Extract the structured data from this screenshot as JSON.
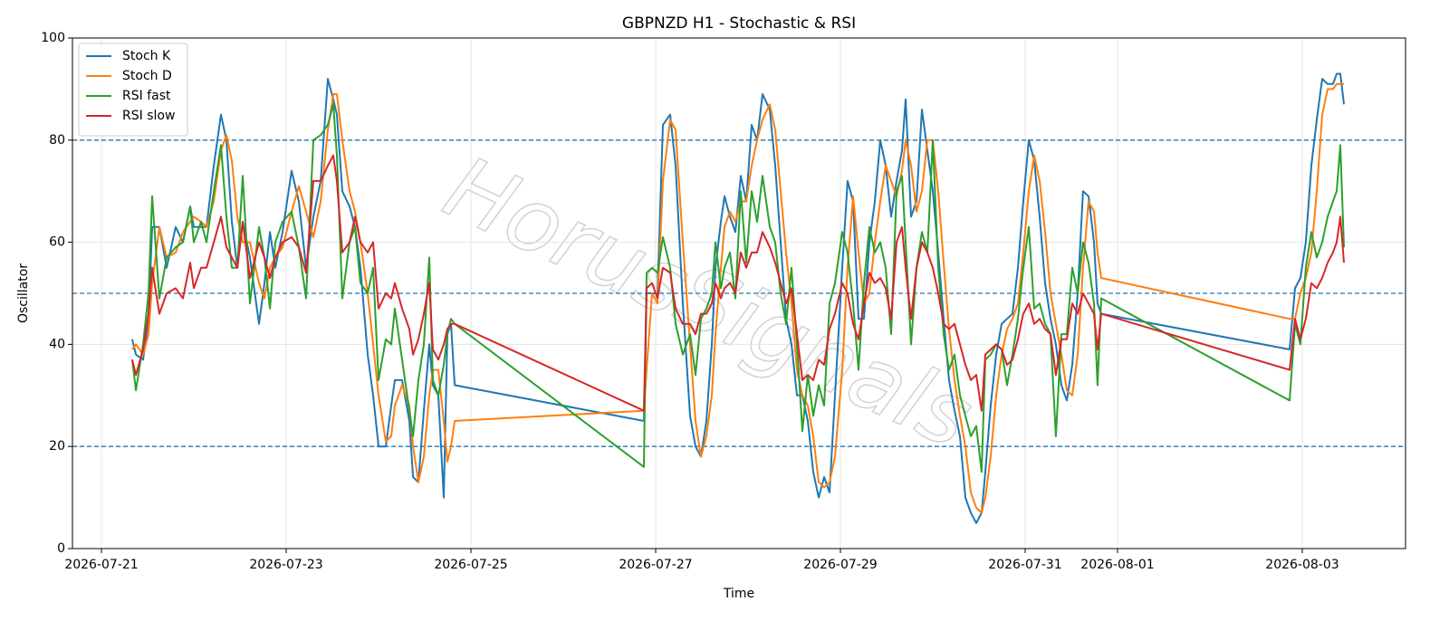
{
  "chart_data": {
    "type": "line",
    "title": "GBPNZD H1 - Stochastic & RSI",
    "x_label": "Time",
    "y_label": "Oscillator",
    "watermark": "HorusSignals",
    "xlim": [
      20654.686,
      20669.118
    ],
    "ylim": [
      0,
      100
    ],
    "xticks": [
      {
        "value": 20655,
        "label": "2026-07-21"
      },
      {
        "value": 20657,
        "label": "2026-07-23"
      },
      {
        "value": 20659,
        "label": "2026-07-25"
      },
      {
        "value": 20661,
        "label": "2026-07-27"
      },
      {
        "value": 20663,
        "label": "2026-07-29"
      },
      {
        "value": 20665,
        "label": "2026-07-31"
      },
      {
        "value": 20666,
        "label": "2026-08-01"
      },
      {
        "value": 20668,
        "label": "2026-08-03"
      }
    ],
    "yticks": [
      0,
      20,
      40,
      60,
      80,
      100
    ],
    "grid": true,
    "legend": "upper-left",
    "hlines": [
      20,
      50,
      80
    ],
    "hline_color": "#1f77b4",
    "x": [
      20655.333,
      20655.373,
      20655.451,
      20655.51,
      20655.549,
      20655.627,
      20655.706,
      20655.804,
      20655.882,
      20655.961,
      20656.0,
      20656.078,
      20656.137,
      20656.216,
      20656.294,
      20656.353,
      20656.412,
      20656.471,
      20656.529,
      20656.608,
      20656.706,
      20656.765,
      20656.824,
      20656.882,
      20656.961,
      20657.059,
      20657.137,
      20657.216,
      20657.294,
      20657.373,
      20657.451,
      20657.51,
      20657.549,
      20657.608,
      20657.686,
      20657.745,
      20657.804,
      20657.882,
      20657.941,
      20658.0,
      20658.078,
      20658.137,
      20658.176,
      20658.255,
      20658.333,
      20658.373,
      20658.431,
      20658.49,
      20658.549,
      20658.588,
      20658.647,
      20658.706,
      20658.745,
      20658.784,
      20658.824,
      20660.873,
      20660.902,
      20660.961,
      20661.02,
      20661.078,
      20661.157,
      20661.216,
      20661.294,
      20661.373,
      20661.431,
      20661.49,
      20661.549,
      20661.608,
      20661.647,
      20661.706,
      20661.745,
      20661.804,
      20661.863,
      20661.922,
      20661.98,
      20662.039,
      20662.098,
      20662.157,
      20662.235,
      20662.294,
      20662.353,
      20662.412,
      20662.471,
      20662.529,
      20662.588,
      20662.647,
      20662.706,
      20662.765,
      20662.824,
      20662.882,
      20662.941,
      20663.02,
      20663.078,
      20663.137,
      20663.196,
      20663.255,
      20663.314,
      20663.373,
      20663.431,
      20663.49,
      20663.549,
      20663.608,
      20663.667,
      20663.706,
      20663.765,
      20663.824,
      20663.882,
      20663.941,
      20664.0,
      20664.059,
      20664.118,
      20664.176,
      20664.235,
      20664.294,
      20664.353,
      20664.412,
      20664.471,
      20664.529,
      20664.569,
      20664.627,
      20664.686,
      20664.745,
      20664.804,
      20664.863,
      20664.922,
      20664.98,
      20665.039,
      20665.098,
      20665.157,
      20665.216,
      20665.275,
      20665.333,
      20665.392,
      20665.451,
      20665.51,
      20665.569,
      20665.627,
      20665.686,
      20665.745,
      20665.784,
      20665.824,
      20667.863,
      20667.922,
      20667.98,
      20668.039,
      20668.098,
      20668.157,
      20668.216,
      20668.275,
      20668.333,
      20668.373,
      20668.412,
      20668.451
    ],
    "series": [
      {
        "name": "Stoch K",
        "color": "#1f77b4",
        "values": [
          41,
          38,
          37,
          45,
          63,
          63,
          55,
          63,
          60,
          67,
          63,
          63,
          63,
          75,
          85,
          80,
          64,
          55,
          64,
          57,
          44,
          52,
          62,
          55,
          62,
          74,
          68,
          55,
          65,
          72,
          92,
          88,
          85,
          70,
          67,
          63,
          55,
          38,
          30,
          20,
          20,
          28,
          33,
          33,
          25,
          14,
          13,
          27,
          40,
          32,
          30,
          10,
          42,
          44,
          32,
          25,
          50,
          50,
          50,
          83,
          85,
          75,
          48,
          26,
          20,
          18,
          25,
          40,
          55,
          64,
          69,
          65,
          62,
          73,
          68,
          83,
          80,
          89,
          86,
          75,
          60,
          45,
          40,
          30,
          30,
          25,
          15,
          10,
          14,
          11,
          30,
          55,
          72,
          68,
          45,
          45,
          60,
          68,
          80,
          75,
          65,
          72,
          78,
          88,
          65,
          68,
          86,
          78,
          70,
          58,
          45,
          33,
          27,
          22,
          10,
          7,
          5,
          7,
          15,
          28,
          38,
          44,
          45,
          46,
          55,
          68,
          80,
          76,
          65,
          52,
          45,
          40,
          32,
          29,
          36,
          50,
          70,
          69,
          60,
          48,
          46,
          39,
          51,
          53,
          60,
          75,
          84,
          92,
          91,
          91,
          93,
          93,
          87
        ]
      },
      {
        "name": "Stoch D",
        "color": "#ff7f0e",
        "values": [
          39,
          40,
          38,
          42,
          52,
          63,
          57,
          58,
          62,
          64,
          65,
          64,
          63,
          68,
          78,
          81,
          76,
          65,
          60,
          60,
          52,
          49,
          55,
          57,
          59,
          66,
          71,
          66,
          61,
          68,
          82,
          89,
          89,
          80,
          70,
          66,
          60,
          50,
          40,
          30,
          21,
          22,
          28,
          32,
          28,
          20,
          13,
          18,
          30,
          35,
          35,
          25,
          17,
          20,
          25,
          27,
          35,
          50,
          48,
          72,
          84,
          82,
          60,
          40,
          25,
          18,
          22,
          30,
          42,
          55,
          63,
          66,
          64,
          68,
          68,
          75,
          80,
          84,
          87,
          82,
          70,
          58,
          48,
          35,
          30,
          28,
          22,
          13,
          12,
          13,
          18,
          35,
          55,
          69,
          58,
          48,
          50,
          60,
          68,
          75,
          72,
          69,
          74,
          80,
          75,
          66,
          70,
          80,
          80,
          70,
          56,
          43,
          33,
          26,
          20,
          11,
          8,
          7,
          10,
          18,
          30,
          38,
          43,
          45,
          48,
          58,
          70,
          77,
          72,
          62,
          50,
          44,
          38,
          31,
          30,
          38,
          55,
          68,
          66,
          58,
          53,
          45,
          45,
          50,
          53,
          58,
          70,
          85,
          90,
          90,
          91,
          91,
          91
        ]
      },
      {
        "name": "RSI fast",
        "color": "#2ca02c",
        "values": [
          37,
          31,
          40,
          50,
          69,
          49,
          57,
          59,
          60,
          67,
          60,
          64,
          60,
          70,
          79,
          65,
          55,
          55,
          73,
          48,
          63,
          57,
          47,
          60,
          64,
          66,
          59,
          49,
          80,
          81,
          83,
          87,
          77,
          49,
          60,
          63,
          52,
          50,
          55,
          33,
          41,
          40,
          47,
          37,
          27,
          22,
          33,
          40,
          57,
          33,
          30,
          36,
          42,
          45,
          44,
          16,
          54,
          55,
          54,
          61,
          55,
          44,
          38,
          42,
          34,
          45,
          47,
          50,
          60,
          51,
          55,
          58,
          49,
          70,
          56,
          70,
          64,
          73,
          63,
          60,
          50,
          44,
          55,
          40,
          23,
          34,
          26,
          32,
          28,
          48,
          52,
          62,
          58,
          48,
          35,
          52,
          63,
          58,
          60,
          55,
          42,
          70,
          73,
          60,
          40,
          55,
          62,
          58,
          80,
          55,
          42,
          35,
          38,
          30,
          26,
          22,
          24,
          15,
          37,
          38,
          40,
          39,
          32,
          38,
          45,
          55,
          63,
          47,
          48,
          44,
          42,
          22,
          42,
          42,
          55,
          50,
          60,
          56,
          48,
          32,
          49,
          29,
          44,
          40,
          55,
          62,
          57,
          60,
          65,
          68,
          70,
          79,
          59
        ]
      },
      {
        "name": "RSI slow",
        "color": "#d62728",
        "values": [
          37,
          34,
          39,
          46,
          55,
          46,
          50,
          51,
          49,
          56,
          51,
          55,
          55,
          60,
          65,
          59,
          57,
          55,
          64,
          53,
          60,
          57,
          53,
          57,
          60,
          61,
          59,
          54,
          72,
          72,
          75,
          77,
          72,
          58,
          60,
          65,
          60,
          58,
          60,
          47,
          50,
          49,
          52,
          47,
          43,
          38,
          41,
          46,
          52,
          39,
          37,
          40,
          43,
          44,
          44,
          27,
          51,
          52,
          49,
          55,
          54,
          47,
          44,
          44,
          42,
          46,
          46,
          48,
          52,
          49,
          51,
          52,
          50,
          58,
          55,
          58,
          58,
          62,
          59,
          56,
          52,
          48,
          51,
          42,
          33,
          34,
          33,
          37,
          36,
          43,
          46,
          52,
          50,
          44,
          41,
          48,
          54,
          52,
          53,
          51,
          45,
          60,
          63,
          55,
          45,
          55,
          60,
          58,
          55,
          50,
          44,
          43,
          44,
          40,
          36,
          33,
          34,
          27,
          38,
          39,
          40,
          39,
          36,
          37,
          41,
          46,
          48,
          44,
          45,
          43,
          42,
          34,
          41,
          41,
          48,
          46,
          50,
          48,
          46,
          39,
          46,
          35,
          45,
          41,
          45,
          52,
          51,
          53,
          56,
          58,
          60,
          65,
          56
        ]
      }
    ]
  }
}
